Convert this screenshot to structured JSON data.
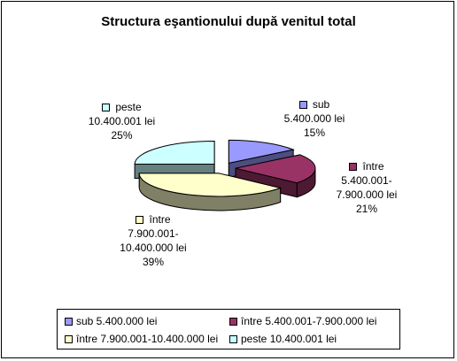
{
  "chart_data": {
    "type": "pie",
    "title": "Structura eşantionului după venitul total",
    "categories": [
      "sub 5.400.000 lei",
      "între 5.400.001-7.900.000 lei",
      "între 7.900.001-10.400.000 lei",
      "peste 10.400.001 lei"
    ],
    "values": [
      15,
      21,
      39,
      25
    ],
    "value_labels": [
      "15%",
      "21%",
      "39%",
      "25%"
    ],
    "data_labels": [
      {
        "lines": [
          "sub",
          "5.400.000 lei",
          "15%"
        ]
      },
      {
        "lines": [
          "între",
          "5.400.001-",
          "7.900.000 lei",
          "21%"
        ]
      },
      {
        "lines": [
          "între",
          "7.900.001-",
          "10.400.000 lei",
          "39%"
        ]
      },
      {
        "lines": [
          "peste",
          "10.400.001 lei",
          "25%"
        ]
      }
    ],
    "colors": [
      "#9999FF",
      "#993366",
      "#FFFFCC",
      "#CCFFFF"
    ],
    "side_colors": [
      "#4d4d80",
      "#4d1a33",
      "#808066",
      "#668080"
    ],
    "legend_position": "bottom",
    "exploded": true,
    "style": "3d"
  }
}
